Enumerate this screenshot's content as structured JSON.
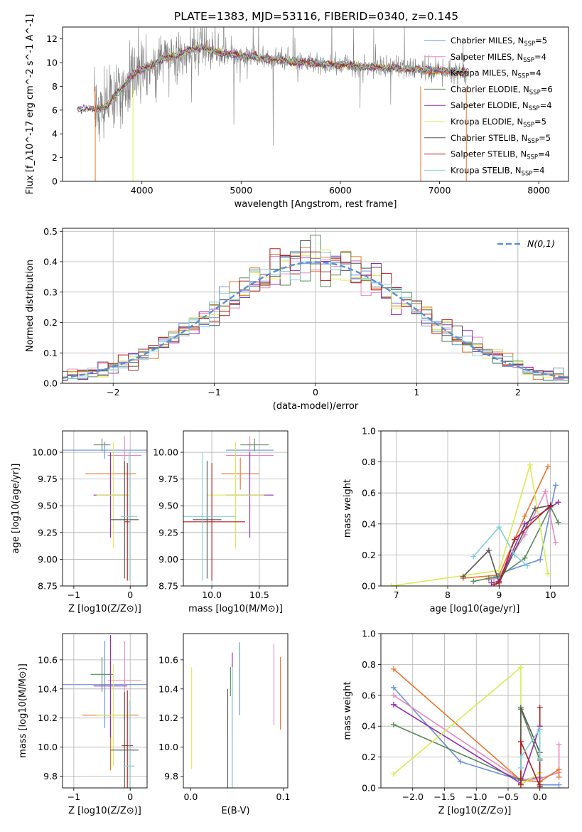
{
  "figure_title": "PLATE=1383, MJD=53116, FIBERID=0340, z=0.145",
  "colors": {
    "chabrier_miles": "#6a90dc",
    "salpeter_miles": "#e889bd",
    "kroupa_miles": "#e8762b",
    "chabrier_elodie": "#5a8a5a",
    "salpeter_elodie": "#8f2fb0",
    "kroupa_elodie": "#d8ec52",
    "chabrier_stelib": "#555555",
    "salpeter_stelib": "#b01e1e",
    "kroupa_stelib": "#80cfd6",
    "data": "#808080",
    "gaussian": "#5b8ed6"
  },
  "chart_data": [
    {
      "id": "spectrum",
      "type": "line",
      "xlabel": "wavelength [Angstrom, rest frame]",
      "ylabel": "Flux [f_λ10^-17 erg cm^-2 s^-1 A^-1]",
      "xlim": [
        3200,
        8300
      ],
      "ylim": [
        0,
        13
      ],
      "xticks": [
        4000,
        5000,
        6000,
        7000,
        8000
      ],
      "yticks": [
        0,
        2,
        4,
        6,
        8,
        10,
        12
      ],
      "grid": false,
      "legend_position": "top-right",
      "legend": [
        {
          "key": "chabrier_miles",
          "label": "Chabrier MILES, N",
          "sub": "SSP",
          "tail": "=5"
        },
        {
          "key": "salpeter_miles",
          "label": "Salpeter MILES, N",
          "sub": "SSP",
          "tail": "=4"
        },
        {
          "key": "kroupa_miles",
          "label": "Kroupa MILES, N",
          "sub": "SSP",
          "tail": "=4"
        },
        {
          "key": "chabrier_elodie",
          "label": "Chabrier ELODIE, N",
          "sub": "SSP",
          "tail": "=6"
        },
        {
          "key": "salpeter_elodie",
          "label": "Salpeter ELODIE, N",
          "sub": "SSP",
          "tail": "=4"
        },
        {
          "key": "kroupa_elodie",
          "label": "Kroupa ELODIE, N",
          "sub": "SSP",
          "tail": "=5"
        },
        {
          "key": "chabrier_stelib",
          "label": "Chabrier STELIB, N",
          "sub": "SSP",
          "tail": "=5"
        },
        {
          "key": "salpeter_stelib",
          "label": "Salpeter STELIB, N",
          "sub": "SSP",
          "tail": "=4"
        },
        {
          "key": "kroupa_stelib",
          "label": "Kroupa STELIB, N",
          "sub": "SSP",
          "tail": "=4"
        }
      ],
      "model_curve": {
        "x": [
          3350,
          3450,
          3550,
          3650,
          3700,
          3800,
          3900,
          3950,
          4000,
          4100,
          4200,
          4300,
          4400,
          4500,
          4600,
          4700,
          4800,
          5000,
          5200,
          5400,
          5600,
          5800,
          6000,
          6200,
          6400,
          6600,
          6800,
          7000,
          7200,
          7300
        ],
        "y": [
          6.0,
          6.2,
          6.0,
          6.4,
          7.0,
          7.8,
          9.0,
          9.2,
          9.4,
          9.8,
          10.3,
          10.5,
          10.8,
          11.1,
          11.3,
          11.0,
          10.8,
          10.6,
          10.4,
          10.2,
          10.0,
          9.9,
          9.8,
          9.7,
          9.6,
          9.5,
          9.4,
          9.3,
          9.2,
          9.1
        ]
      },
      "data_range": [
        3520,
        7270
      ]
    },
    {
      "id": "residuals",
      "type": "histogram",
      "xlabel": "(data-model)/error",
      "ylabel": "Normed distribution",
      "xlim": [
        -2.5,
        2.5
      ],
      "ylim": [
        0,
        0.51
      ],
      "xticks": [
        -2,
        -1,
        0,
        1,
        2
      ],
      "yticks": [
        0.0,
        0.1,
        0.2,
        0.3,
        0.4,
        0.5
      ],
      "grid": true,
      "legend_position": "top-right",
      "legend_label": "N(0,1)",
      "bin_width": 0.1
    },
    {
      "id": "age_vs_Z",
      "type": "errorbar",
      "xlabel": "Z [log10(Z/Z⊙)]",
      "ylabel": "age  [log10(age/yr)]",
      "xlim": [
        -1.2,
        0.3
      ],
      "ylim": [
        8.75,
        10.2
      ],
      "xticks": [
        -1,
        0
      ],
      "yticks": [
        8.75,
        9.0,
        9.25,
        9.5,
        9.75,
        10.0
      ],
      "grid": true,
      "points": [
        {
          "key": "chabrier_miles",
          "x": -0.45,
          "xerr": 0.75,
          "y": 10.02,
          "yerr": 0.08
        },
        {
          "key": "salpeter_miles",
          "x": -0.1,
          "xerr": 0.3,
          "y": 9.97,
          "yerr": 0.18
        },
        {
          "key": "kroupa_miles",
          "x": -0.35,
          "xerr": 0.45,
          "y": 9.8,
          "yerr": 0.15
        },
        {
          "key": "chabrier_elodie",
          "x": -0.5,
          "xerr": 0.15,
          "y": 10.07,
          "yerr": 0.06
        },
        {
          "key": "salpeter_elodie",
          "x": -0.35,
          "xerr": 0.3,
          "y": 9.6,
          "yerr": 0.4
        },
        {
          "key": "kroupa_elodie",
          "x": -0.3,
          "xerr": 0.3,
          "y": 9.6,
          "yerr": 0.5
        },
        {
          "key": "chabrier_stelib",
          "x": -0.1,
          "xerr": 0.25,
          "y": 9.37,
          "yerr": 0.55
        },
        {
          "key": "salpeter_stelib",
          "x": -0.05,
          "xerr": 0.05,
          "y": 9.35,
          "yerr": 0.55
        },
        {
          "key": "kroupa_stelib",
          "x": -0.02,
          "xerr": 0.15,
          "y": 9.4,
          "yerr": 0.6
        }
      ]
    },
    {
      "id": "age_vs_mass",
      "type": "errorbar",
      "xlabel": "mass [log10(M/M⊙)]",
      "ylabel": "",
      "xlim": [
        9.7,
        10.8
      ],
      "ylim": [
        8.75,
        10.2
      ],
      "xticks": [
        10.0,
        10.5
      ],
      "yticks": [
        8.75,
        9.0,
        9.25,
        9.5,
        9.75,
        10.0
      ],
      "grid": true,
      "points": [
        {
          "key": "chabrier_miles",
          "x": 10.4,
          "xerr": 0.25,
          "y": 10.02,
          "yerr": 0.08
        },
        {
          "key": "salpeter_miles",
          "x": 10.4,
          "xerr": 0.25,
          "y": 9.97,
          "yerr": 0.18
        },
        {
          "key": "kroupa_miles",
          "x": 10.3,
          "xerr": 0.2,
          "y": 9.8,
          "yerr": 0.15
        },
        {
          "key": "chabrier_elodie",
          "x": 10.45,
          "xerr": 0.15,
          "y": 10.07,
          "yerr": 0.06
        },
        {
          "key": "salpeter_elodie",
          "x": 10.4,
          "xerr": 0.25,
          "y": 9.6,
          "yerr": 0.4
        },
        {
          "key": "kroupa_elodie",
          "x": 10.25,
          "xerr": 0.3,
          "y": 9.6,
          "yerr": 0.5
        },
        {
          "key": "chabrier_stelib",
          "x": 9.95,
          "xerr": 0.15,
          "y": 9.37,
          "yerr": 0.55
        },
        {
          "key": "salpeter_stelib",
          "x": 10.0,
          "xerr": 0.35,
          "y": 9.35,
          "yerr": 0.55
        },
        {
          "key": "kroupa_stelib",
          "x": 9.9,
          "xerr": 0.35,
          "y": 9.4,
          "yerr": 0.6
        }
      ]
    },
    {
      "id": "mass_weight_vs_age",
      "type": "line",
      "xlabel": "age  [log10(age/yr)]",
      "ylabel": "mass weight",
      "xlim": [
        6.7,
        10.35
      ],
      "ylim": [
        0,
        1.0
      ],
      "xticks": [
        7,
        8,
        9,
        10
      ],
      "yticks": [
        0.0,
        0.2,
        0.4,
        0.6,
        0.8,
        1.0
      ],
      "grid": true,
      "series": [
        {
          "key": "chabrier_miles",
          "x": [
            8.9,
            9.0,
            9.8,
            10.1
          ],
          "y": [
            0.05,
            0.08,
            0.17,
            0.65
          ]
        },
        {
          "key": "salpeter_miles",
          "x": [
            8.8,
            9.0,
            9.5,
            9.9,
            10.1
          ],
          "y": [
            0.04,
            0.06,
            0.33,
            0.61,
            0.28
          ]
        },
        {
          "key": "kroupa_miles",
          "x": [
            8.3,
            9.0,
            9.5,
            9.95
          ],
          "y": [
            0.05,
            0.07,
            0.45,
            0.77
          ]
        },
        {
          "key": "chabrier_elodie",
          "x": [
            8.5,
            8.8,
            9.0,
            9.5,
            10.0,
            10.15
          ],
          "y": [
            0.03,
            0.05,
            0.06,
            0.18,
            0.51,
            0.41
          ]
        },
        {
          "key": "salpeter_elodie",
          "x": [
            8.85,
            9.0,
            9.5,
            10.15
          ],
          "y": [
            0.02,
            0.03,
            0.4,
            0.54
          ]
        },
        {
          "key": "kroupa_elodie",
          "x": 6.9,
          "x_list": [
            6.9,
            9.0,
            9.6,
            9.95
          ],
          "y": [
            0.0,
            0.1,
            0.78,
            0.08
          ]
        },
        {
          "key": "chabrier_stelib",
          "x": [
            8.3,
            8.8,
            9.0,
            9.7,
            10.0
          ],
          "y": [
            0.06,
            0.23,
            0.02,
            0.5,
            0.52
          ]
        },
        {
          "key": "salpeter_stelib",
          "x": [
            8.9,
            9.0,
            9.3,
            10.0
          ],
          "y": [
            0.01,
            0.02,
            0.3,
            0.52
          ]
        },
        {
          "key": "kroupa_stelib",
          "x": [
            8.5,
            9.0,
            9.3,
            9.55
          ],
          "y": [
            0.19,
            0.38,
            0.2,
            0.13
          ]
        }
      ]
    },
    {
      "id": "mass_vs_Z",
      "type": "errorbar",
      "xlabel": "Z [log10(Z/Z⊙)]",
      "ylabel": "mass [log10(M/M⊙)]",
      "xlim": [
        -1.2,
        0.3
      ],
      "ylim": [
        9.72,
        10.78
      ],
      "xticks": [
        -1,
        0
      ],
      "yticks": [
        9.8,
        10.0,
        10.2,
        10.4,
        10.6
      ],
      "grid": true,
      "points": [
        {
          "key": "chabrier_miles",
          "x": -0.45,
          "xerr": 0.75,
          "y": 10.43,
          "yerr": 0.3
        },
        {
          "key": "salpeter_miles",
          "x": -0.1,
          "xerr": 0.3,
          "y": 10.46,
          "yerr": 0.27
        },
        {
          "key": "kroupa_miles",
          "x": -0.35,
          "xerr": 0.5,
          "y": 10.22,
          "yerr": 0.38
        },
        {
          "key": "chabrier_elodie",
          "x": -0.5,
          "xerr": 0.2,
          "y": 10.5,
          "yerr": 0.12
        },
        {
          "key": "salpeter_elodie",
          "x": -0.35,
          "xerr": 0.3,
          "y": 10.42,
          "yerr": 0.35
        },
        {
          "key": "kroupa_elodie",
          "x": -0.3,
          "xerr": 0.3,
          "y": 10.22,
          "yerr": 0.35
        },
        {
          "key": "chabrier_stelib",
          "x": -0.1,
          "xerr": 0.25,
          "y": 9.98,
          "yerr": 0.4
        },
        {
          "key": "salpeter_stelib",
          "x": -0.05,
          "xerr": 0.1,
          "y": 10.01,
          "yerr": 0.38
        },
        {
          "key": "kroupa_stelib",
          "x": -0.02,
          "xerr": 0.1,
          "y": 9.87,
          "yerr": 0.45
        }
      ]
    },
    {
      "id": "mass_vs_EBV",
      "type": "errorbar",
      "xlabel": "E(B-V)",
      "ylabel": "",
      "xlim": [
        -0.008,
        0.105
      ],
      "ylim": [
        9.72,
        10.78
      ],
      "xticks": [
        0.0,
        0.1
      ],
      "yticks": [
        9.8,
        10.0,
        10.2,
        10.4,
        10.6
      ],
      "grid": false,
      "points": [
        {
          "key": "chabrier_miles",
          "x": 0.053,
          "y": 10.47,
          "yerr": 0.25
        },
        {
          "key": "salpeter_miles",
          "x": 0.09,
          "y": 10.43,
          "yerr": 0.28
        },
        {
          "key": "kroupa_miles",
          "x": 0.097,
          "y": 10.37,
          "yerr": 0.25
        },
        {
          "key": "chabrier_elodie",
          "x": 0.043,
          "y": 10.45,
          "yerr": 0.1
        },
        {
          "key": "salpeter_elodie",
          "x": 0.045,
          "y": 10.35,
          "yerr": 0.3
        },
        {
          "key": "kroupa_elodie",
          "x": 0.001,
          "y": 10.2,
          "yerr": 0.35
        },
        {
          "key": "chabrier_stelib",
          "x": 0.04,
          "y": 10.0,
          "yerr": 0.4
        },
        {
          "key": "salpeter_stelib",
          "x": 0.045,
          "y": 10.02,
          "yerr": 0.4
        },
        {
          "key": "kroupa_stelib",
          "x": 0.045,
          "y": 10.1,
          "yerr": 0.45
        }
      ]
    },
    {
      "id": "mass_weight_vs_Z",
      "type": "line",
      "xlabel": "Z [log10(Z/Z⊙)]",
      "ylabel": "mass weight",
      "xlim": [
        -2.5,
        0.45
      ],
      "ylim": [
        0,
        1.0
      ],
      "xticks": [
        -2.0,
        -1.5,
        -1.0,
        -0.5,
        0.0
      ],
      "yticks": [
        0.0,
        0.2,
        0.4,
        0.6,
        0.8,
        1.0
      ],
      "grid": true,
      "series": [
        {
          "key": "chabrier_miles",
          "x": [
            -2.3,
            -1.25,
            -0.3,
            0.0,
            0.0,
            0.3
          ],
          "y": [
            0.65,
            0.17,
            0.05,
            0.07,
            0.02,
            0.02
          ]
        },
        {
          "key": "salpeter_miles",
          "x": [
            -2.3,
            -0.3,
            0.0,
            0.3,
            0.3
          ],
          "y": [
            0.6,
            0.05,
            0.06,
            0.1,
            0.28
          ]
        },
        {
          "key": "kroupa_miles",
          "x": [
            -2.3,
            -0.3,
            0.0,
            0.3,
            0.3
          ],
          "y": [
            0.77,
            0.05,
            0.04,
            0.12,
            0.07
          ]
        },
        {
          "key": "chabrier_elodie",
          "x": [
            -2.3,
            -0.3,
            -0.3,
            0.0,
            0.0
          ],
          "y": [
            0.41,
            0.05,
            0.51,
            0.18,
            0.0
          ]
        },
        {
          "key": "salpeter_elodie",
          "x": [
            -2.3,
            -0.3,
            0.0,
            0.0
          ],
          "y": [
            0.54,
            0.03,
            0.4,
            0.02
          ]
        },
        {
          "key": "kroupa_elodie",
          "x": [
            -2.3,
            -0.3,
            -0.3,
            0.0
          ],
          "y": [
            0.09,
            0.78,
            0.02,
            0.1
          ]
        },
        {
          "key": "chabrier_stelib",
          "x": [
            -0.3,
            -0.3,
            0.0,
            0.0
          ],
          "y": [
            0.06,
            0.52,
            0.23,
            0.02
          ]
        },
        {
          "key": "salpeter_stelib",
          "x": [
            -0.3,
            -0.3,
            0.0,
            0.0
          ],
          "y": [
            0.02,
            0.3,
            0.01,
            0.52
          ]
        },
        {
          "key": "kroupa_stelib",
          "x": [
            -0.3,
            -0.3,
            0.0,
            0.0
          ],
          "y": [
            0.13,
            0.2,
            0.38,
            0.19
          ]
        }
      ]
    }
  ]
}
